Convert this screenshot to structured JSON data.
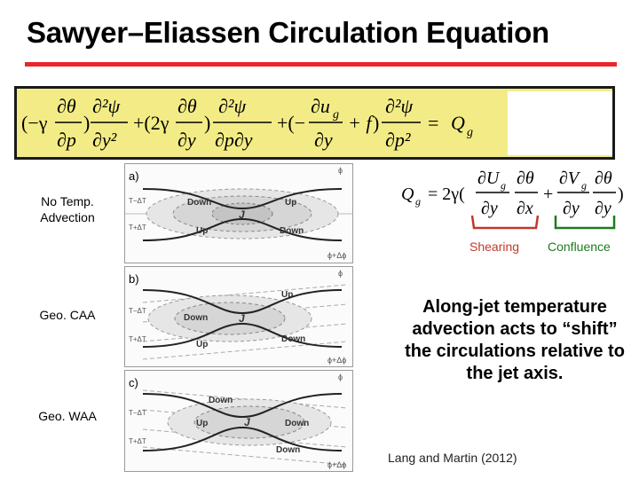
{
  "title": "Sawyer–Eliassen Circulation Equation",
  "equation": {
    "lhs_terms": [
      "(−γ ∂θ/∂p) ∂²ψ/∂y²",
      "+(2γ ∂θ/∂y) ∂²ψ/∂p∂y",
      "+(−∂u_g/∂y + f) ∂²ψ/∂p²"
    ],
    "rhs": "= Q_g"
  },
  "qg_equation": "Q_g = 2γ(∂U_g/∂y ∂θ/∂x + ∂V_g/∂y ∂θ/∂y)",
  "brackets": {
    "shearing": {
      "label": "Shearing",
      "color": "#c0392b"
    },
    "confluence": {
      "label": "Confluence",
      "color": "#1e7b1e"
    }
  },
  "panel_labels": {
    "no_temp": [
      "No Temp.",
      "Advection"
    ],
    "caa": "Geo. CAA",
    "waa": "Geo. WAA"
  },
  "panels": [
    {
      "letter": "a)",
      "top_label": "T−ΔT",
      "bottom_label": "T+ΔT",
      "phi_top": "ϕ",
      "phi_bottom": "ϕ+Δϕ",
      "words": {
        "left_top": "Down",
        "right_top": "Up",
        "center": "J",
        "left_bottom": "Up",
        "right_bottom": "Down"
      }
    },
    {
      "letter": "b)",
      "top_label": "T−ΔT",
      "bottom_label": "T+ΔT",
      "phi_top": "ϕ",
      "phi_bottom": "ϕ+Δϕ",
      "words": {
        "up_top": "Up",
        "down_left": "Down",
        "center": "J",
        "up_left": "Up",
        "down_right": "Down"
      }
    },
    {
      "letter": "c)",
      "top_label": "T−ΔT",
      "bottom_label": "T+ΔT",
      "phi_top": "ϕ",
      "phi_bottom": "ϕ+Δϕ",
      "words": {
        "down_top": "Down",
        "up_left": "Up",
        "center": "J",
        "down_right": "Down",
        "down_bottom": "Down"
      }
    }
  ],
  "note": "Along-jet temperature advection acts to “shift” the circulations relative to the jet axis.",
  "citation": "Lang and Martin (2012)",
  "colors": {
    "title_rule": "#e8262d",
    "equation_bg": "#f3ec86"
  }
}
